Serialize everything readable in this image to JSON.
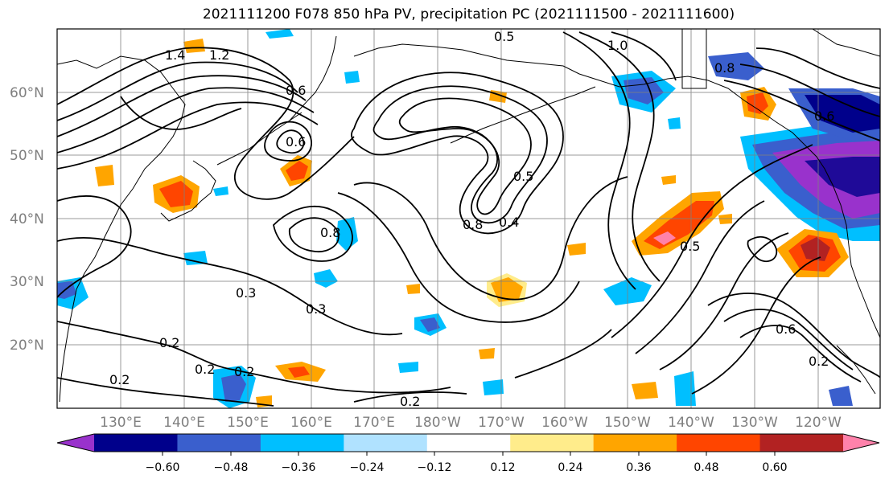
{
  "title": "2021111200 F078 850 hPa PV, precipitation PC (2021111500 - 2021111600)",
  "map": {
    "lat_labels": [
      "60°N",
      "50°N",
      "40°N",
      "30°N",
      "20°N"
    ],
    "lon_labels": [
      "130°E",
      "140°E",
      "150°E",
      "160°E",
      "170°E",
      "180°W",
      "170°W",
      "160°W",
      "150°W",
      "140°W",
      "130°W",
      "120°W"
    ],
    "contour_labels": [
      "1.4",
      "1.2",
      "0.5",
      "1.0",
      "0.6",
      "0.6",
      "0.8",
      "0.5",
      "0.4",
      "0.8",
      "0.3",
      "0.3",
      "0.2",
      "0.2",
      "0.2",
      "0.2",
      "0.2",
      "0.6",
      "0.5",
      "0.2",
      "0.6",
      "0.8"
    ]
  },
  "colorbar": {
    "ticks": [
      "−0.60",
      "−0.48",
      "−0.36",
      "−0.24",
      "−0.12",
      "0.12",
      "0.24",
      "0.36",
      "0.48",
      "0.60"
    ],
    "colors": [
      "#9932cc",
      "#00008b",
      "#3a5fcd",
      "#00bfff",
      "#b0e2ff",
      "#ffffff",
      "#ffec8b",
      "#ffa500",
      "#ff4500",
      "#b22222",
      "#ff82ab"
    ]
  }
}
